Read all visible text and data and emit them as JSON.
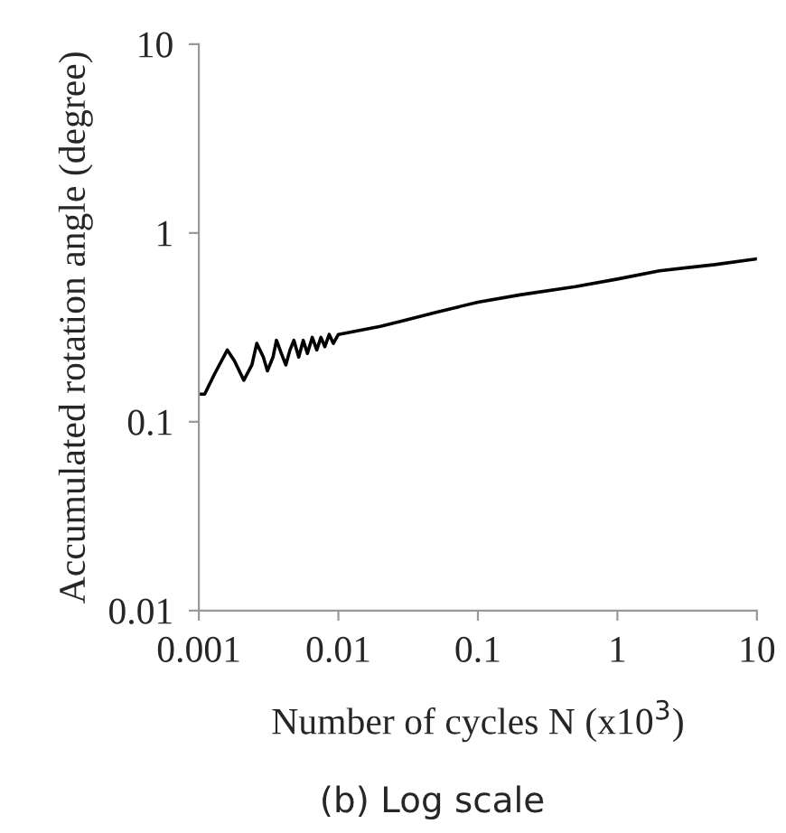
{
  "chart_data": {
    "type": "line",
    "title": "(b) Log scale",
    "xlabel": "Number of cycles N (x10$^{3}$)",
    "ylabel": "Accumulated rotation angle (degree)",
    "log": "xy",
    "grid": false,
    "legend": false,
    "marker": "none",
    "line_style": "solid",
    "xlim": [
      0.001,
      10
    ],
    "xticks": [
      0.001,
      0.01,
      0.1,
      1,
      10
    ],
    "ylim": [
      0.01,
      10
    ],
    "yticks": [
      0.01,
      0.1,
      1,
      10
    ],
    "series": [
      {
        "color": "#000000",
        "x": [
          0.001,
          0.0011,
          0.0013,
          0.0016,
          0.0018,
          0.0021,
          0.0024,
          0.0026,
          0.0029,
          0.0031,
          0.0034,
          0.0036,
          0.0039,
          0.0042,
          0.0045,
          0.0048,
          0.0052,
          0.0056,
          0.006,
          0.0065,
          0.007,
          0.0075,
          0.008,
          0.0086,
          0.0092,
          0.01,
          0.02,
          0.03,
          0.05,
          0.1,
          0.2,
          0.5,
          1,
          2,
          5,
          10
        ],
        "values": [
          0.14,
          0.14,
          0.18,
          0.24,
          0.21,
          0.166,
          0.2,
          0.26,
          0.22,
          0.186,
          0.22,
          0.27,
          0.23,
          0.2,
          0.24,
          0.27,
          0.22,
          0.27,
          0.23,
          0.28,
          0.24,
          0.28,
          0.25,
          0.29,
          0.26,
          0.29,
          0.32,
          0.345,
          0.38,
          0.43,
          0.47,
          0.52,
          0.57,
          0.63,
          0.68,
          0.73
        ]
      }
    ]
  }
}
